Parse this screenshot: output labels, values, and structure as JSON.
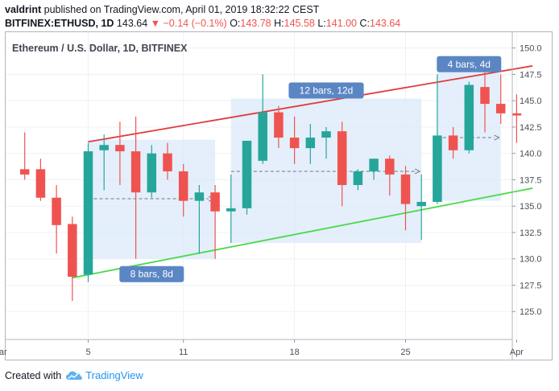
{
  "header": {
    "publisher": "valdrint",
    "published_text": "published on TradingView.com, April 01, 2019 18:32:22 CEST",
    "symbol": "BITFINEX:ETHUSD, 1D",
    "last": "143.64",
    "arrow": "▼",
    "change": "−0.14 (−0.1%)",
    "open_label": "O:",
    "open": "143.78",
    "high_label": "H:",
    "high": "145.58",
    "low_label": "L:",
    "low": "141.00",
    "close_label": "C:",
    "close": "143.64"
  },
  "footer": {
    "created_with": "Created with",
    "brand": "TradingView"
  },
  "colors": {
    "up": "#26a69a",
    "down": "#ef5350",
    "upper_line": "#e03c3c",
    "lower_line": "#4cd94c",
    "box_fill": "#dbe9f9",
    "box_label": "#5b86c4"
  },
  "chart_data": {
    "type": "candlestick",
    "title": "Ethereum / U.S. Dollar, 1D, BITFINEX",
    "ylim": [
      122.5,
      151.5
    ],
    "y_ticks": [
      125.0,
      127.5,
      130.0,
      132.5,
      135.0,
      137.5,
      140.0,
      142.5,
      145.0,
      147.5,
      150.0
    ],
    "x_ticks": [
      {
        "label": "Mar",
        "x": -0.6
      },
      {
        "label": "5",
        "x": 5
      },
      {
        "label": "11",
        "x": 11
      },
      {
        "label": "18",
        "x": 18
      },
      {
        "label": "25",
        "x": 25
      },
      {
        "label": "Apr",
        "x": 32
      }
    ],
    "candles": [
      {
        "x": 1,
        "o": 138.5,
        "h": 142.0,
        "l": 137.5,
        "c": 138.0
      },
      {
        "x": 2,
        "o": 138.5,
        "h": 139.5,
        "l": 135.5,
        "c": 135.8
      },
      {
        "x": 3,
        "o": 135.8,
        "h": 137.0,
        "l": 130.5,
        "c": 133.2
      },
      {
        "x": 4,
        "o": 133.3,
        "h": 134.0,
        "l": 126.0,
        "c": 128.3
      },
      {
        "x": 5,
        "o": 128.5,
        "h": 141.0,
        "l": 127.8,
        "c": 140.2
      },
      {
        "x": 6,
        "o": 140.3,
        "h": 141.8,
        "l": 136.5,
        "c": 140.8
      },
      {
        "x": 7,
        "o": 140.8,
        "h": 143.0,
        "l": 137.0,
        "c": 140.2
      },
      {
        "x": 8,
        "o": 140.2,
        "h": 143.5,
        "l": 130.0,
        "c": 136.3
      },
      {
        "x": 9,
        "o": 136.3,
        "h": 140.8,
        "l": 135.8,
        "c": 140.0
      },
      {
        "x": 10,
        "o": 140.0,
        "h": 141.0,
        "l": 137.5,
        "c": 138.3
      },
      {
        "x": 11,
        "o": 138.3,
        "h": 139.0,
        "l": 134.0,
        "c": 135.5
      },
      {
        "x": 12,
        "o": 135.5,
        "h": 137.0,
        "l": 130.5,
        "c": 136.3
      },
      {
        "x": 13,
        "o": 136.3,
        "h": 137.0,
        "l": 130.0,
        "c": 134.5
      },
      {
        "x": 14,
        "o": 134.5,
        "h": 138.0,
        "l": 131.5,
        "c": 134.8
      },
      {
        "x": 15,
        "o": 134.8,
        "h": 141.0,
        "l": 134.2,
        "c": 141.2
      },
      {
        "x": 16,
        "o": 139.3,
        "h": 147.5,
        "l": 139.0,
        "c": 143.9
      },
      {
        "x": 17,
        "o": 143.9,
        "h": 144.5,
        "l": 140.5,
        "c": 141.5
      },
      {
        "x": 18,
        "o": 141.5,
        "h": 143.5,
        "l": 139.0,
        "c": 140.5
      },
      {
        "x": 19,
        "o": 140.5,
        "h": 142.8,
        "l": 139.0,
        "c": 141.5
      },
      {
        "x": 20,
        "o": 141.5,
        "h": 142.5,
        "l": 139.5,
        "c": 142.1
      },
      {
        "x": 21,
        "o": 142.1,
        "h": 143.0,
        "l": 135.0,
        "c": 137.0
      },
      {
        "x": 22,
        "o": 137.0,
        "h": 138.5,
        "l": 136.5,
        "c": 138.3
      },
      {
        "x": 23,
        "o": 138.3,
        "h": 139.5,
        "l": 137.5,
        "c": 139.5
      },
      {
        "x": 24,
        "o": 139.5,
        "h": 139.8,
        "l": 136.0,
        "c": 138.0
      },
      {
        "x": 25,
        "o": 138.0,
        "h": 138.8,
        "l": 132.7,
        "c": 135.2
      },
      {
        "x": 26,
        "o": 135.0,
        "h": 138.0,
        "l": 131.8,
        "c": 135.4
      },
      {
        "x": 27,
        "o": 135.4,
        "h": 147.5,
        "l": 135.2,
        "c": 141.7
      },
      {
        "x": 28,
        "o": 141.7,
        "h": 142.5,
        "l": 139.5,
        "c": 140.3
      },
      {
        "x": 29,
        "o": 140.3,
        "h": 146.8,
        "l": 140.0,
        "c": 146.5
      },
      {
        "x": 30,
        "o": 146.3,
        "h": 149.0,
        "l": 142.0,
        "c": 144.7
      },
      {
        "x": 31,
        "o": 144.7,
        "h": 147.5,
        "l": 142.8,
        "c": 143.8
      },
      {
        "x": 32,
        "o": 143.8,
        "h": 145.6,
        "l": 141.0,
        "c": 143.6
      }
    ],
    "trendlines": [
      {
        "name": "upper",
        "from": [
          5,
          141.1
        ],
        "to": [
          33,
          148.3
        ]
      },
      {
        "name": "lower",
        "from": [
          4,
          128.2
        ],
        "to": [
          33,
          136.7
        ]
      }
    ],
    "range_boxes": [
      {
        "label": "8 bars, 8d",
        "from_x": 5,
        "to_x": 13,
        "top": 141.3,
        "bottom": 130.0,
        "mid": 135.7,
        "label_pos": "below"
      },
      {
        "label": "12 bars, 12d",
        "from_x": 14,
        "to_x": 26,
        "top": 145.2,
        "bottom": 131.5,
        "mid": 138.3,
        "label_pos": "above"
      },
      {
        "label": "4 bars, 4d",
        "from_x": 27,
        "to_x": 31,
        "top": 147.7,
        "bottom": 135.5,
        "mid": 141.5,
        "label_pos": "above"
      }
    ]
  }
}
